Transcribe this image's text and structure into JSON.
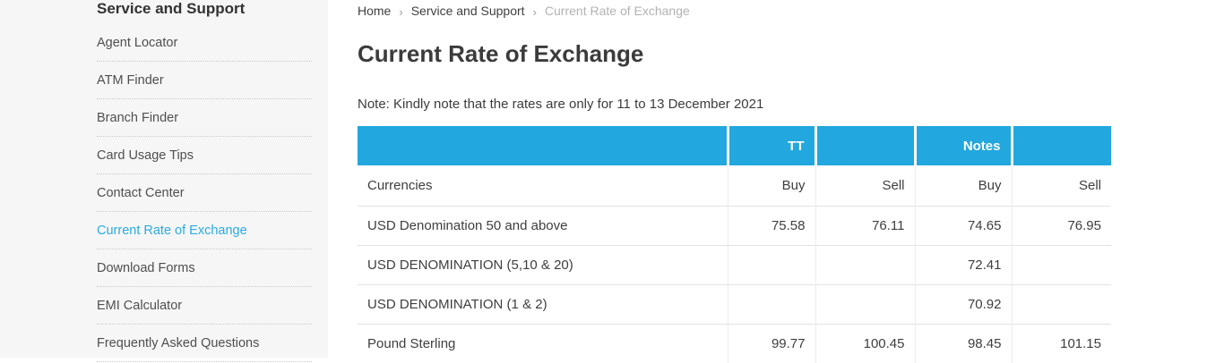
{
  "colors": {
    "accent": "#22a7de",
    "active_link": "#2aabe2"
  },
  "sidebar": {
    "heading": "Service and Support",
    "items": [
      {
        "label": "Agent Locator",
        "active": false
      },
      {
        "label": "ATM Finder",
        "active": false
      },
      {
        "label": "Branch Finder",
        "active": false
      },
      {
        "label": "Card Usage Tips",
        "active": false
      },
      {
        "label": "Contact Center",
        "active": false
      },
      {
        "label": "Current Rate of Exchange",
        "active": true
      },
      {
        "label": "Download Forms",
        "active": false
      },
      {
        "label": "EMI Calculator",
        "active": false
      },
      {
        "label": "Frequently Asked Questions",
        "active": false
      }
    ]
  },
  "breadcrumb": {
    "separator": "›",
    "items": [
      {
        "label": "Home",
        "current": false
      },
      {
        "label": "Service and Support",
        "current": false
      },
      {
        "label": "Current Rate of Exchange",
        "current": true
      }
    ]
  },
  "page": {
    "title": "Current Rate of Exchange",
    "note": "Note: Kindly note that the rates are only for 11 to 13 December 2021"
  },
  "table": {
    "header_groups": [
      "",
      "TT",
      "",
      "Notes",
      ""
    ],
    "subheader": [
      "Currencies",
      "Buy",
      "Sell",
      "Buy",
      "Sell"
    ],
    "rows": [
      {
        "currency": "USD Denomination 50 and above",
        "values": [
          "75.58",
          "76.11",
          "74.65",
          "76.95"
        ]
      },
      {
        "currency": "USD DENOMINATION (5,10 & 20)",
        "values": [
          "",
          "",
          "72.41",
          ""
        ]
      },
      {
        "currency": "USD DENOMINATION (1 & 2)",
        "values": [
          "",
          "",
          "70.92",
          ""
        ]
      },
      {
        "currency": "Pound Sterling",
        "values": [
          "99.77",
          "100.45",
          "98.45",
          "101.15"
        ]
      }
    ]
  }
}
